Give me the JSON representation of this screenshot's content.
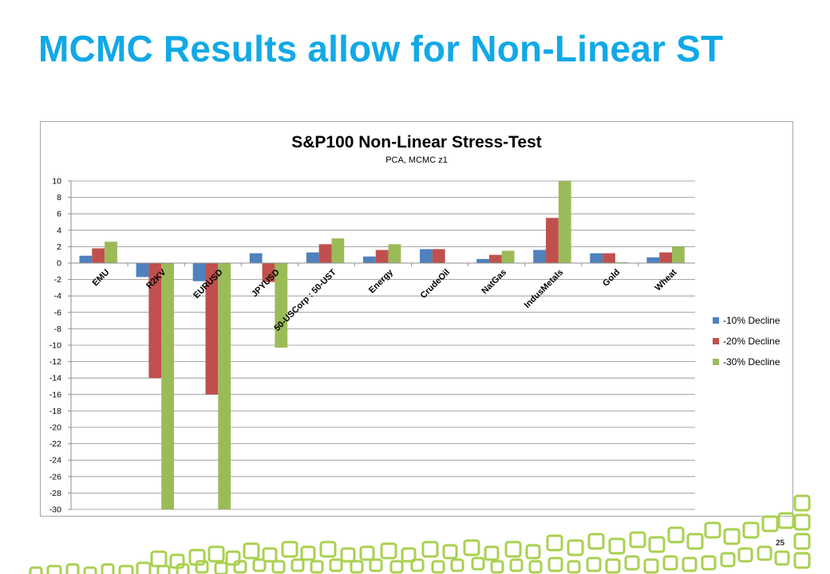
{
  "slide": {
    "title": "MCMC Results allow for Non-Linear ST",
    "page_number": "25"
  },
  "colors": {
    "title": "#11a9e6",
    "series": [
      "#4f81bd",
      "#c0504d",
      "#9bbb59"
    ],
    "decoration": "#a9d04f",
    "gridline": "#8c8c8c",
    "axis": "#8c8c8c"
  },
  "chart_data": {
    "type": "bar",
    "title": "S&P100 Non-Linear Stress-Test",
    "subtitle": "PCA, MCMC z1",
    "xlabel": "",
    "ylabel": "",
    "ylim": [
      -30,
      10
    ],
    "ytick_step": 2,
    "grid": true,
    "legend_position": "right",
    "categories": [
      "EMU",
      "R2KV",
      "EURUSD",
      "JPYUSD",
      "50-USCorp : 50-UST",
      "Energy",
      "CrudeOil",
      "NatGas",
      "IndusMetals",
      "Gold",
      "Wheat"
    ],
    "series": [
      {
        "name": "-10% Decline",
        "values": [
          0.9,
          -1.7,
          -2.2,
          1.2,
          1.3,
          0.8,
          1.7,
          0.5,
          1.6,
          1.2,
          0.7
        ]
      },
      {
        "name": "-20% Decline",
        "values": [
          1.8,
          -14.0,
          -16.0,
          -2.3,
          2.3,
          1.6,
          1.7,
          1.0,
          5.5,
          1.2,
          1.3
        ]
      },
      {
        "name": "-30% Decline",
        "values": [
          2.6,
          -30.0,
          -30.0,
          -10.3,
          3.0,
          2.3,
          0.0,
          1.5,
          10.0,
          0.1,
          2.0
        ]
      }
    ]
  }
}
